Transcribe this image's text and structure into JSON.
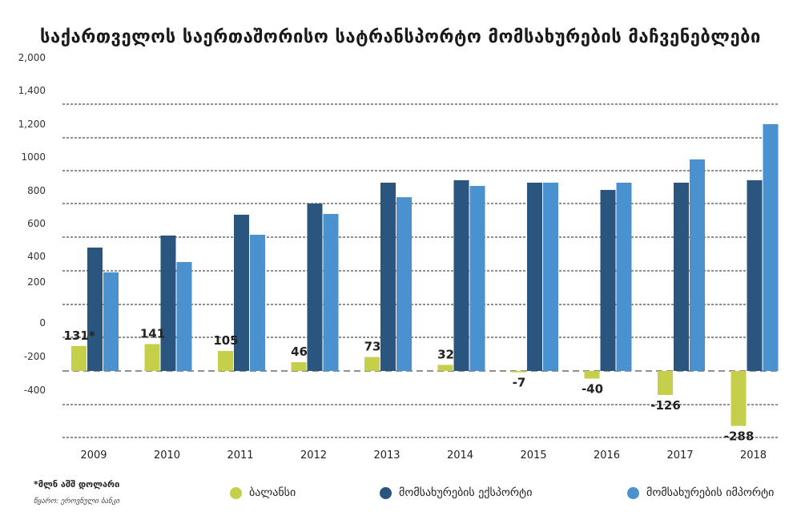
{
  "chart_data": {
    "type": "bar",
    "title": "საქართველოს საერთაშორისო სატრანსპორტო მომსახურების მაჩვენებლები",
    "xlabel": "",
    "ylabel": "",
    "categories": [
      "2009",
      "2010",
      "2011",
      "2012",
      "2013",
      "2014",
      "2015",
      "2016",
      "2017",
      "2018"
    ],
    "y_tick_labels": [
      "2,000",
      "1,400",
      "1,200",
      "1000",
      "800",
      "600",
      "400",
      "200",
      "0",
      "-200",
      "-400"
    ],
    "series": [
      {
        "name": "ბალანსი",
        "color": "#c5cf4a",
        "values": [
          131,
          141,
          105,
          46,
          73,
          32,
          -7,
          -40,
          -126,
          -288
        ]
      },
      {
        "name": "მომსახურების ექსპორტი",
        "color": "#2a557f",
        "values": [
          647,
          710,
          819,
          878,
          987,
          1000,
          987,
          949,
          987,
          1000
        ]
      },
      {
        "name": "მომსახურების იმპორტი",
        "color": "#4a92cf",
        "values": [
          517,
          571,
          714,
          823,
          911,
          970,
          987,
          987,
          1109,
          1294
        ]
      }
    ],
    "data_labels": [
      "131*",
      "141",
      "105",
      "46",
      "73",
      "32",
      "-7",
      "-40",
      "-126",
      "-288"
    ],
    "legend_position": "bottom",
    "grid": true
  },
  "footnote": "*მლნ აშშ დოლარი",
  "source": "წყარო: ეროვნული ბანკი"
}
